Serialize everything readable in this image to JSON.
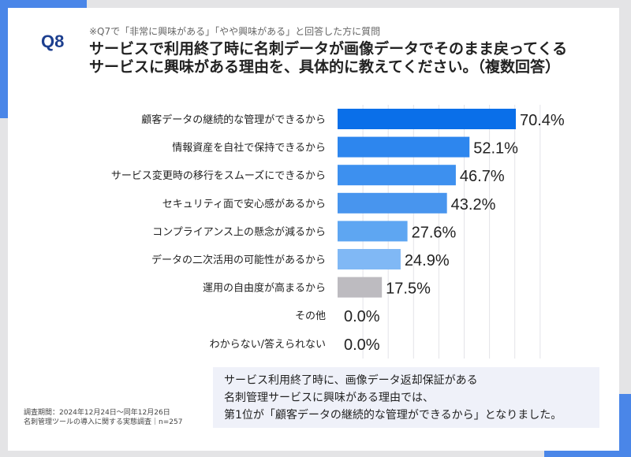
{
  "header": {
    "question_number": "Q8",
    "note": "※Q7で「非常に興味がある」「やや興味がある」と回答した方に質問",
    "title_line1": "サービスで利用終了時に名刺データが画像データでそのまま戻ってくる",
    "title_line2": "サービスに興味がある理由を、具体的に教えてください。（複数回答）"
  },
  "chart_data": {
    "type": "bar",
    "orientation": "horizontal",
    "categories": [
      "顧客データの継続的な管理ができるから",
      "情報資産を自社で保持できるから",
      "サービス変更時の移行をスムーズにできるから",
      "セキュリティ面で安心感があるから",
      "コンプライアンス上の懸念が減るから",
      "データの二次活用の可能性があるから",
      "運用の自由度が高まるから",
      "その他",
      "わからない/答えられない"
    ],
    "values": [
      70.4,
      52.1,
      46.7,
      43.2,
      27.6,
      24.9,
      17.5,
      0.0,
      0.0
    ],
    "value_labels": [
      "70.4%",
      "52.1%",
      "46.7%",
      "43.2%",
      "27.6%",
      "24.9%",
      "17.5%",
      "0.0%",
      "0.0%"
    ],
    "colors": [
      "#0a6fe9",
      "#2d86ee",
      "#3d90ef",
      "#4895ee",
      "#5ea6f2",
      "#80b8f5",
      "#bdbbc0",
      "#bdbbc0",
      "#bdbbc0"
    ],
    "xlim": [
      0,
      80
    ],
    "grid": true,
    "unit": "%"
  },
  "summary": {
    "line1": "サービス利用終了時に、画像データ返却保証がある",
    "line2": "名刺管理サービスに興味がある理由では、",
    "line3": "第1位が「顧客データの継続的な管理ができるから」となりました。"
  },
  "footnote": {
    "line1": "調査期間：2024年12月24日〜同年12月26日",
    "line2": "名刺管理ツールの導入に関する実態調査｜n=257"
  },
  "accent_color": "#4a86e8"
}
